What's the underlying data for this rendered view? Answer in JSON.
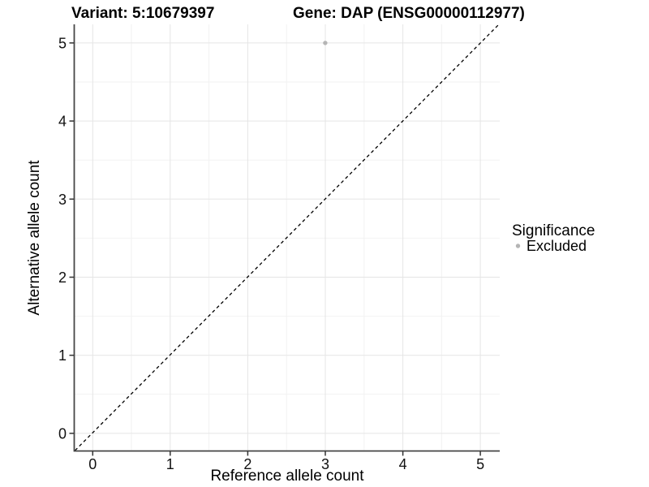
{
  "chart_data": {
    "type": "scatter",
    "title_left": "Variant: 5:10679397",
    "title_right": "Gene: DAP (ENSG00000112977)",
    "xlabel": "Reference allele count",
    "ylabel": "Alternative allele count",
    "x_ticks": [
      "0",
      "1",
      "2",
      "3",
      "4",
      "5"
    ],
    "y_ticks": [
      "0",
      "1",
      "2",
      "3",
      "4",
      "5"
    ],
    "xlim": [
      -0.25,
      5.25
    ],
    "ylim": [
      -0.25,
      5.25
    ],
    "grid": {
      "major": true,
      "minor": true,
      "background": "#ffffff"
    },
    "series": [
      {
        "name": "Excluded",
        "color": "#b5b5b5",
        "points": [
          {
            "x": 3,
            "y": 5
          }
        ]
      }
    ],
    "reference_line": {
      "kind": "identity",
      "equation": "y = x",
      "style": "dashed",
      "color": "#000000"
    },
    "legend": {
      "title": "Significance",
      "position": "right",
      "entries": [
        {
          "label": "Excluded",
          "color": "#b5b5b5"
        }
      ]
    }
  }
}
